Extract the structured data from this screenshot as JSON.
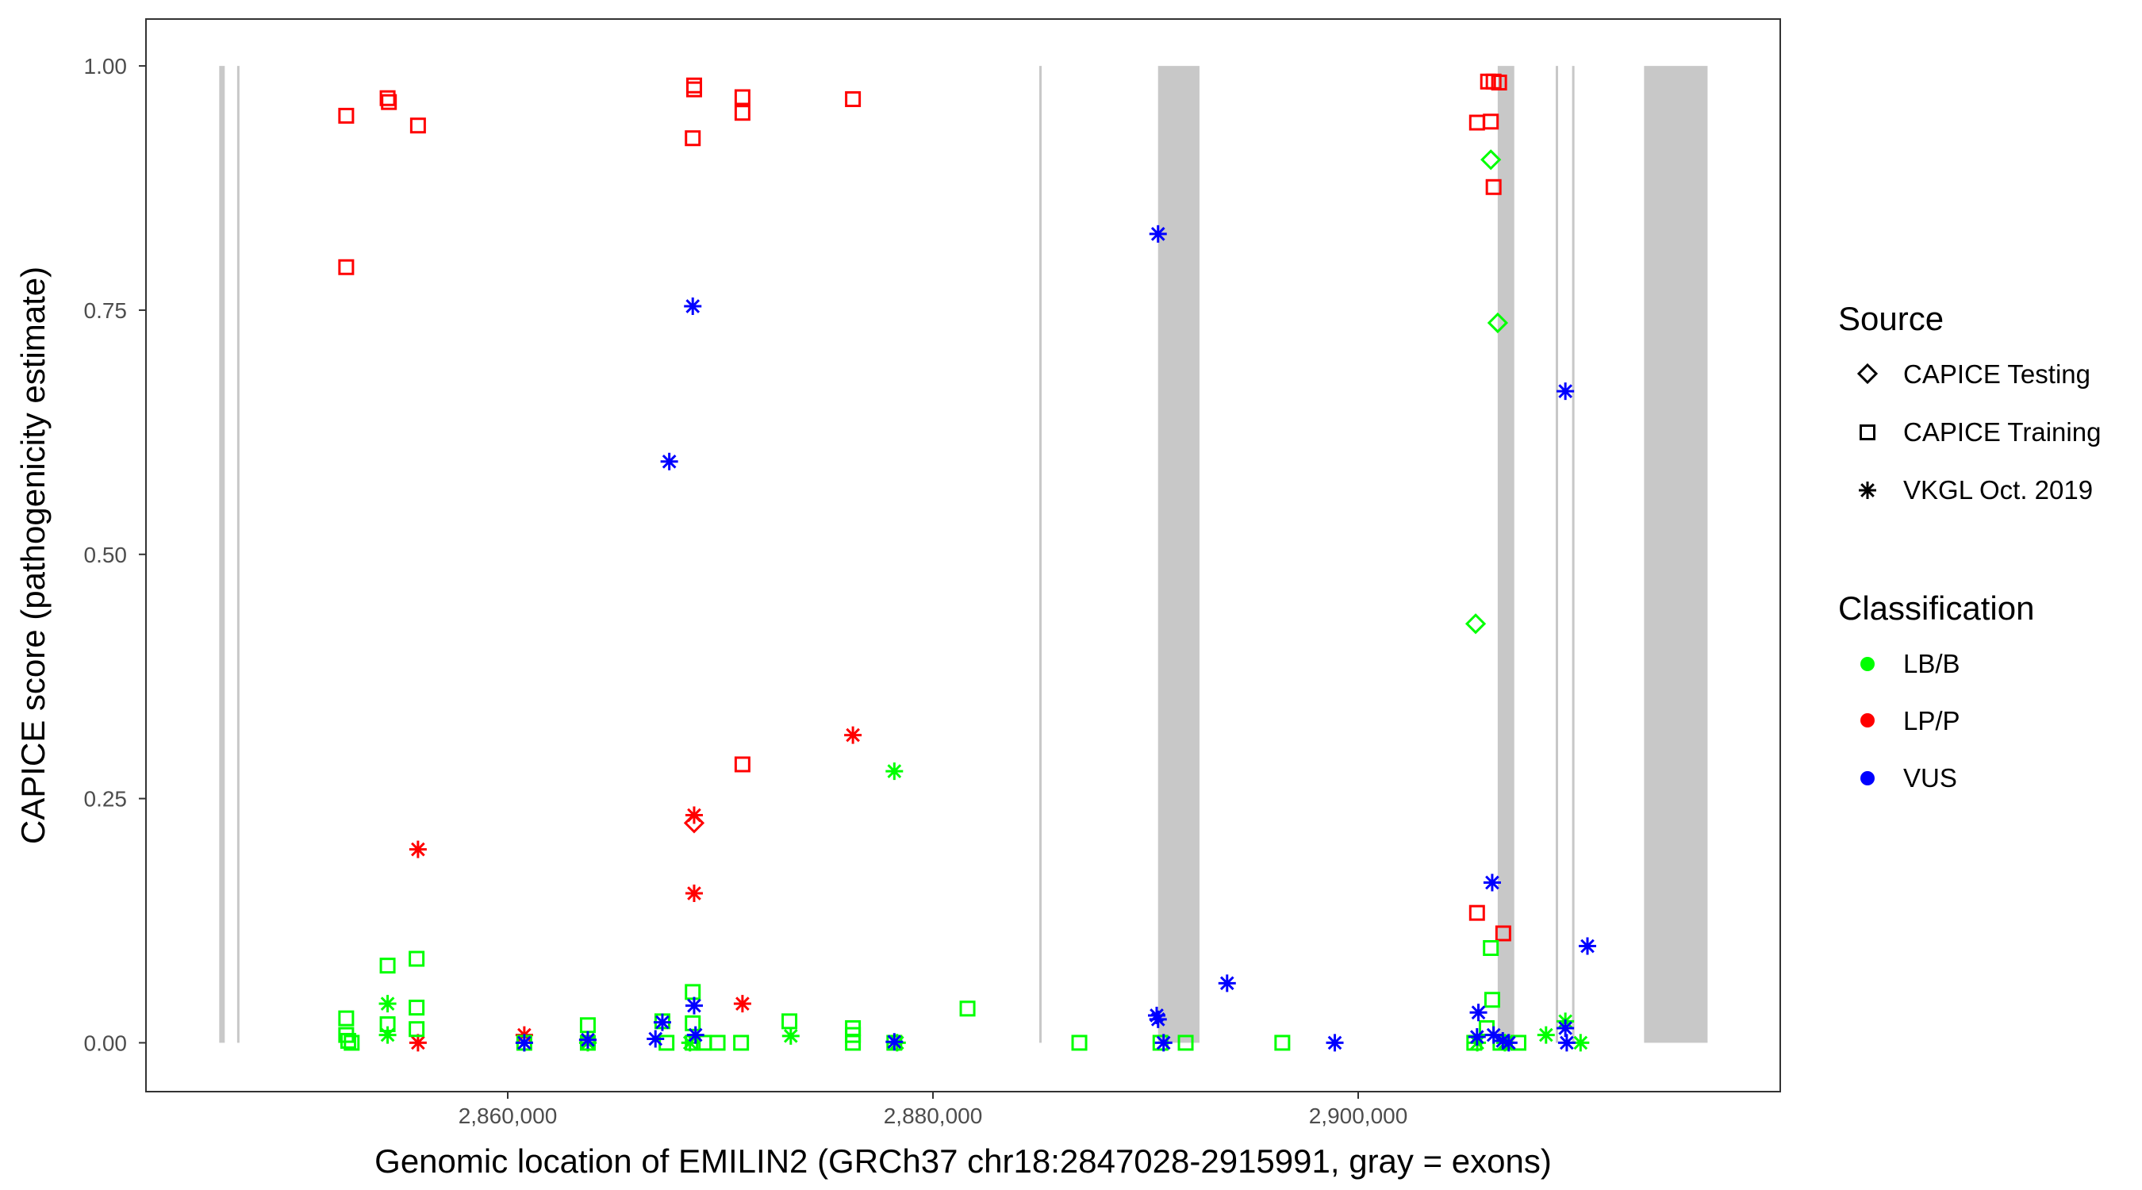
{
  "chart_data": {
    "type": "scatter",
    "title": "",
    "xlabel": "Genomic location of EMILIN2 (GRCh37 chr18:2847028-2915991, gray = exons)",
    "ylabel": "CAPICE score (pathogenicity estimate)",
    "xlim": [
      2842985,
      2919850
    ],
    "ylim": [
      -0.05,
      1.048
    ],
    "x_ticks": [
      2860000,
      2880000,
      2900000
    ],
    "x_tick_labels": [
      "2,860,000",
      "2,880,000",
      "2,900,000"
    ],
    "y_ticks": [
      0,
      0.25,
      0.5,
      0.75,
      1.0
    ],
    "y_tick_labels": [
      "0.00",
      "0.25",
      "0.50",
      "0.75",
      "1.00"
    ],
    "grid": false,
    "exons": [
      [
        2846430,
        2846690
      ],
      [
        2847272,
        2847300
      ],
      [
        2885000,
        2885030
      ],
      [
        2890587,
        2892535
      ],
      [
        2906562,
        2907341
      ],
      [
        2909290,
        2909310
      ],
      [
        2910060,
        2910090
      ],
      [
        2913446,
        2916433
      ]
    ],
    "legend": {
      "placement": "right",
      "source_title": "Source",
      "source_items": [
        {
          "label": "CAPICE Testing",
          "shape": "diamond"
        },
        {
          "label": "CAPICE Training",
          "shape": "square"
        },
        {
          "label": "VKGL Oct. 2019",
          "shape": "asterisk"
        }
      ],
      "class_title": "Classification",
      "class_items": [
        {
          "label": "LB/B",
          "color": "#00ff00"
        },
        {
          "label": "LP/P",
          "color": "#ff0000"
        },
        {
          "label": "VUS",
          "color": "#0000ff"
        }
      ]
    },
    "colors": {
      "LB/B": "#00ff00",
      "LP/P": "#ff0000",
      "VUS": "#0000ff",
      "exon": "#c8c8c8"
    },
    "series": [
      {
        "name": "LP/P CAPICE Training",
        "cls": "LP/P",
        "shape": "square",
        "points": [
          [
            2852402,
            0.949
          ],
          [
            2854350,
            0.967
          ],
          [
            2854410,
            0.963
          ],
          [
            2855779,
            0.939
          ],
          [
            2852402,
            0.794
          ],
          [
            2868767,
            0.98
          ],
          [
            2868767,
            0.976
          ],
          [
            2868702,
            0.926
          ],
          [
            2871040,
            0.968
          ],
          [
            2871040,
            0.952
          ],
          [
            2876235,
            0.966
          ],
          [
            2871040,
            0.285
          ],
          [
            2906108,
            0.984
          ],
          [
            2906368,
            0.984
          ],
          [
            2906627,
            0.983
          ],
          [
            2905589,
            0.942
          ],
          [
            2906238,
            0.943
          ],
          [
            2906368,
            0.876
          ],
          [
            2905589,
            0.133
          ],
          [
            2906822,
            0.112
          ]
        ]
      },
      {
        "name": "LP/P VKGL Oct. 2019",
        "cls": "LP/P",
        "shape": "asterisk",
        "points": [
          [
            2855779,
            0.198
          ],
          [
            2868767,
            0.233
          ],
          [
            2868767,
            0.153
          ],
          [
            2871040,
            0.04
          ],
          [
            2876235,
            0.315
          ],
          [
            2855779,
            0.0
          ],
          [
            2860779,
            0.008
          ],
          [
            2863766,
            0.003
          ]
        ]
      },
      {
        "name": "LP/P CAPICE Testing",
        "cls": "LP/P",
        "shape": "diamond",
        "points": [
          [
            2868767,
            0.225
          ]
        ]
      },
      {
        "name": "LB/B CAPICE Testing",
        "cls": "LB/B",
        "shape": "diamond",
        "points": [
          [
            2906238,
            0.904
          ],
          [
            2906563,
            0.737
          ],
          [
            2905524,
            0.429
          ]
        ]
      },
      {
        "name": "LB/B CAPICE Training",
        "cls": "LB/B",
        "shape": "square",
        "points": [
          [
            2852402,
            0.025
          ],
          [
            2852402,
            0.008
          ],
          [
            2852660,
            0.0
          ],
          [
            2852500,
            0.002
          ],
          [
            2854350,
            0.019
          ],
          [
            2854350,
            0.079
          ],
          [
            2855714,
            0.086
          ],
          [
            2855714,
            0.036
          ],
          [
            2855714,
            0.014
          ],
          [
            2860779,
            0.0
          ],
          [
            2863766,
            0.018
          ],
          [
            2863766,
            0.0
          ],
          [
            2867273,
            0.022
          ],
          [
            2867468,
            0.0
          ],
          [
            2868702,
            0.052
          ],
          [
            2868702,
            0.02
          ],
          [
            2868702,
            0.0
          ],
          [
            2869222,
            0.0
          ],
          [
            2869871,
            0.0
          ],
          [
            2870975,
            0.0
          ],
          [
            2873248,
            0.022
          ],
          [
            2876235,
            0.015
          ],
          [
            2876235,
            0.008
          ],
          [
            2876235,
            0.0
          ],
          [
            2878183,
            0.0
          ],
          [
            2881625,
            0.035
          ],
          [
            2886885,
            0.0
          ],
          [
            2891885,
            0.0
          ],
          [
            2896431,
            0.0
          ],
          [
            2906238,
            0.097
          ],
          [
            2906303,
            0.044
          ],
          [
            2905459,
            0.0
          ],
          [
            2906043,
            0.015
          ],
          [
            2906692,
            0.0
          ],
          [
            2907536,
            0.0
          ],
          [
            2890700,
            0.0
          ]
        ]
      },
      {
        "name": "LB/B VKGL Oct. 2019",
        "cls": "LB/B",
        "shape": "asterisk",
        "points": [
          [
            2854350,
            0.04
          ],
          [
            2854350,
            0.008
          ],
          [
            2878183,
            0.278
          ],
          [
            2873313,
            0.007
          ],
          [
            2908835,
            0.008
          ],
          [
            2909744,
            0.022
          ],
          [
            2910459,
            0.0
          ],
          [
            2878313,
            0.0
          ],
          [
            2860779,
            0.0
          ],
          [
            2863766,
            0.0
          ],
          [
            2868572,
            0.0
          ],
          [
            2905600,
            0.0
          ],
          [
            2906900,
            0.0
          ]
        ]
      },
      {
        "name": "VUS VKGL Oct. 2019",
        "cls": "VUS",
        "shape": "asterisk",
        "points": [
          [
            2890587,
            0.828
          ],
          [
            2868702,
            0.754
          ],
          [
            2867598,
            0.595
          ],
          [
            2909744,
            0.667
          ],
          [
            2906303,
            0.164
          ],
          [
            2910783,
            0.099
          ],
          [
            2893834,
            0.061
          ],
          [
            2890522,
            0.028
          ],
          [
            2890587,
            0.024
          ],
          [
            2898900,
            0.0
          ],
          [
            2890847,
            0.0
          ],
          [
            2905654,
            0.031
          ],
          [
            2905589,
            0.006
          ],
          [
            2906368,
            0.008
          ],
          [
            2907082,
            0.0
          ],
          [
            2906800,
            0.002
          ],
          [
            2909744,
            0.015
          ],
          [
            2909809,
            0.0
          ],
          [
            2867273,
            0.021
          ],
          [
            2866948,
            0.004
          ],
          [
            2868767,
            0.038
          ],
          [
            2868832,
            0.008
          ],
          [
            2878183,
            0.001
          ],
          [
            2863766,
            0.003
          ],
          [
            2860779,
            0.0
          ]
        ]
      }
    ]
  }
}
